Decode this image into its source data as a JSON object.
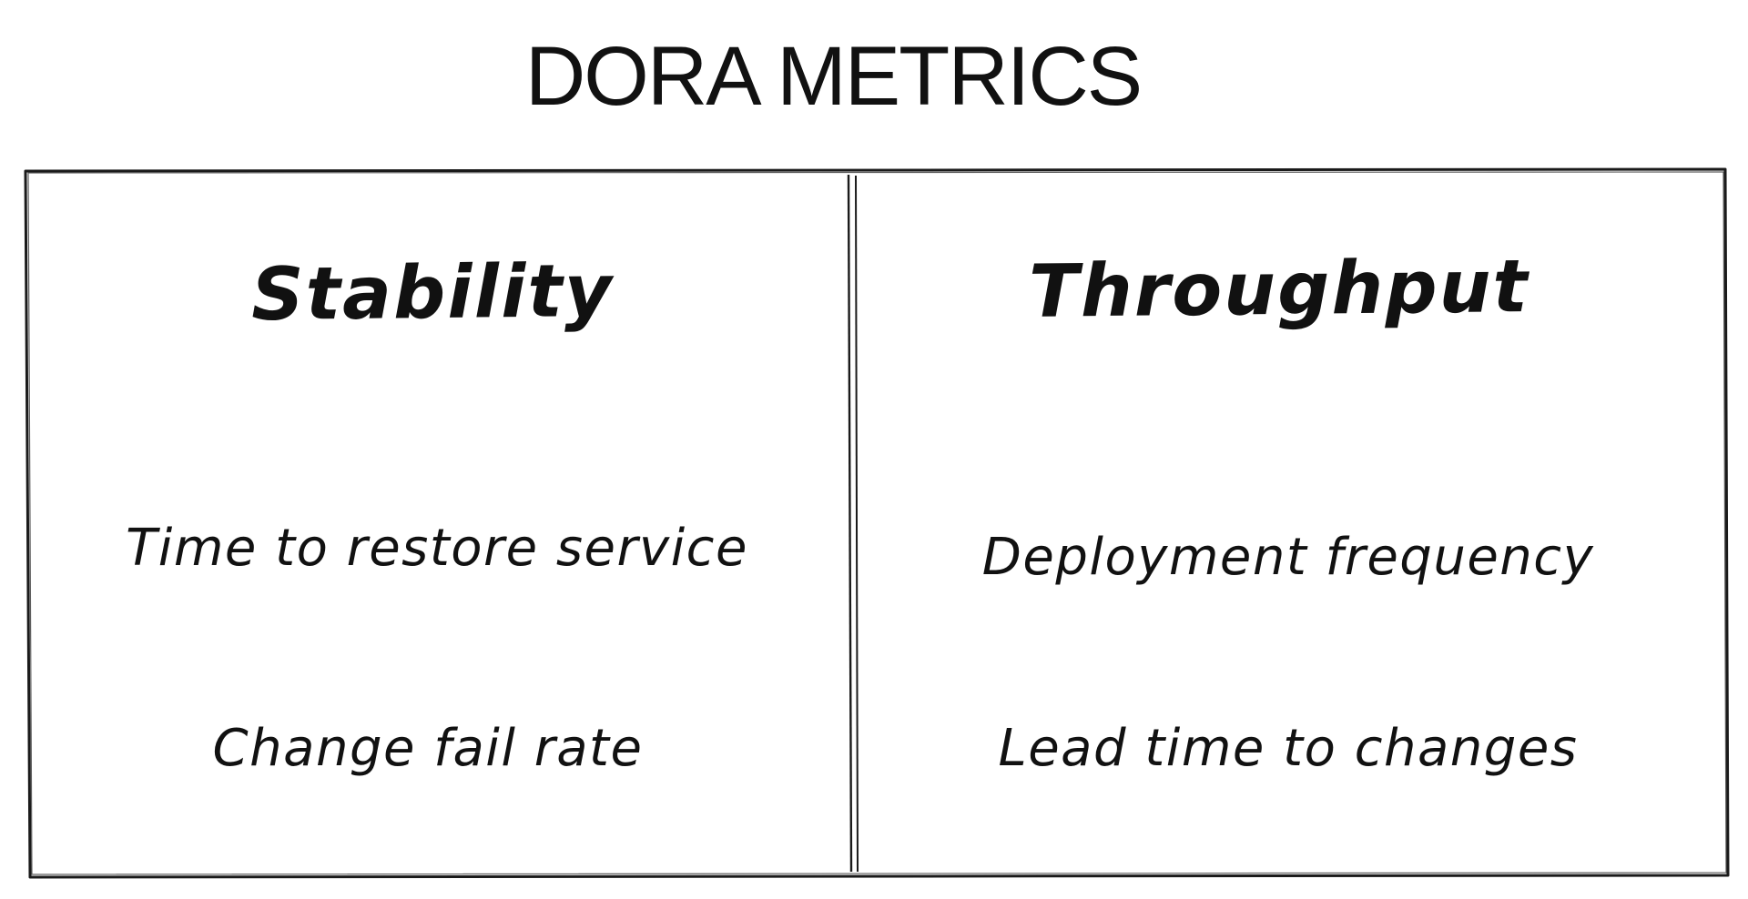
{
  "title": "DORA METRICS",
  "columns": [
    {
      "heading": "Stability",
      "metrics": [
        "Time to restore service",
        "Change fail rate"
      ]
    },
    {
      "heading": "Throughput",
      "metrics": [
        "Deployment frequency",
        "Lead time to changes"
      ]
    }
  ]
}
